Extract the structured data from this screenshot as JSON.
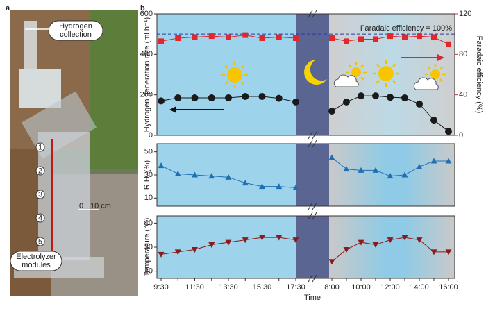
{
  "panel_labels": [
    "a",
    "b"
  ],
  "panel_a": {
    "callouts": [
      "Hydrogen collection",
      "Electrolyzer modules"
    ],
    "modules": [
      "1",
      "2",
      "3",
      "4",
      "5"
    ],
    "scale_bar": [
      "0",
      "10 cm"
    ]
  },
  "chart_data": [
    {
      "type": "line",
      "ylabel": "Hydrogen generation rate (ml h⁻¹)",
      "y2label": "Faradaic efficiency (%)",
      "ylim": [
        0,
        600
      ],
      "yticks": [
        0,
        200,
        400,
        600
      ],
      "y2lim": [
        0,
        120
      ],
      "y2ticks": [
        0,
        40,
        80,
        120
      ],
      "annotation": {
        "text": "Faradaic efficiency = 100%",
        "value": 100,
        "axis": "y2"
      },
      "series": [
        {
          "name": "Hydrogen generation rate",
          "color": "#1a1a1a",
          "marker": "circle",
          "values": [
            170,
            185,
            185,
            185,
            185,
            192,
            192,
            183,
            165,
            120,
            165,
            195,
            195,
            188,
            185,
            155,
            75,
            20
          ]
        },
        {
          "name": "Faradaic efficiency",
          "color": "#e3262b",
          "marker": "square",
          "axis": "y2",
          "values": [
            93,
            96,
            97,
            98,
            97,
            99,
            96,
            97,
            96,
            96,
            93,
            95,
            95,
            98,
            97,
            98,
            97,
            90
          ]
        }
      ]
    },
    {
      "type": "line",
      "ylabel": "R.H. (%)",
      "ylim": [
        3,
        57
      ],
      "yticks": [
        10,
        30,
        50
      ],
      "series": [
        {
          "name": "R.H.",
          "color": "#1f6fb5",
          "marker": "triangle-up",
          "values": [
            38,
            31,
            30,
            29,
            28,
            23,
            20,
            20,
            19,
            45,
            35,
            34,
            34,
            29,
            30,
            37,
            42,
            42
          ]
        }
      ]
    },
    {
      "type": "line",
      "ylabel": "Temperature (°C)",
      "ylim": [
        17,
        43
      ],
      "yticks": [
        20,
        30,
        40
      ],
      "xlabel": "Time",
      "categories": [
        "9:30",
        null,
        "11:30",
        null,
        "13:30",
        null,
        "15:30",
        null,
        "17:30",
        "8:00",
        null,
        "10:00",
        null,
        "12:00",
        null,
        "14:00",
        null,
        "16:00"
      ],
      "series": [
        {
          "name": "Temperature",
          "color": "#8b1a1a",
          "marker": "triangle-down",
          "values": [
            27,
            28,
            29,
            31,
            32,
            33,
            34,
            34,
            33,
            24,
            29,
            32,
            31,
            33,
            34,
            33,
            28,
            28
          ]
        }
      ]
    }
  ]
}
